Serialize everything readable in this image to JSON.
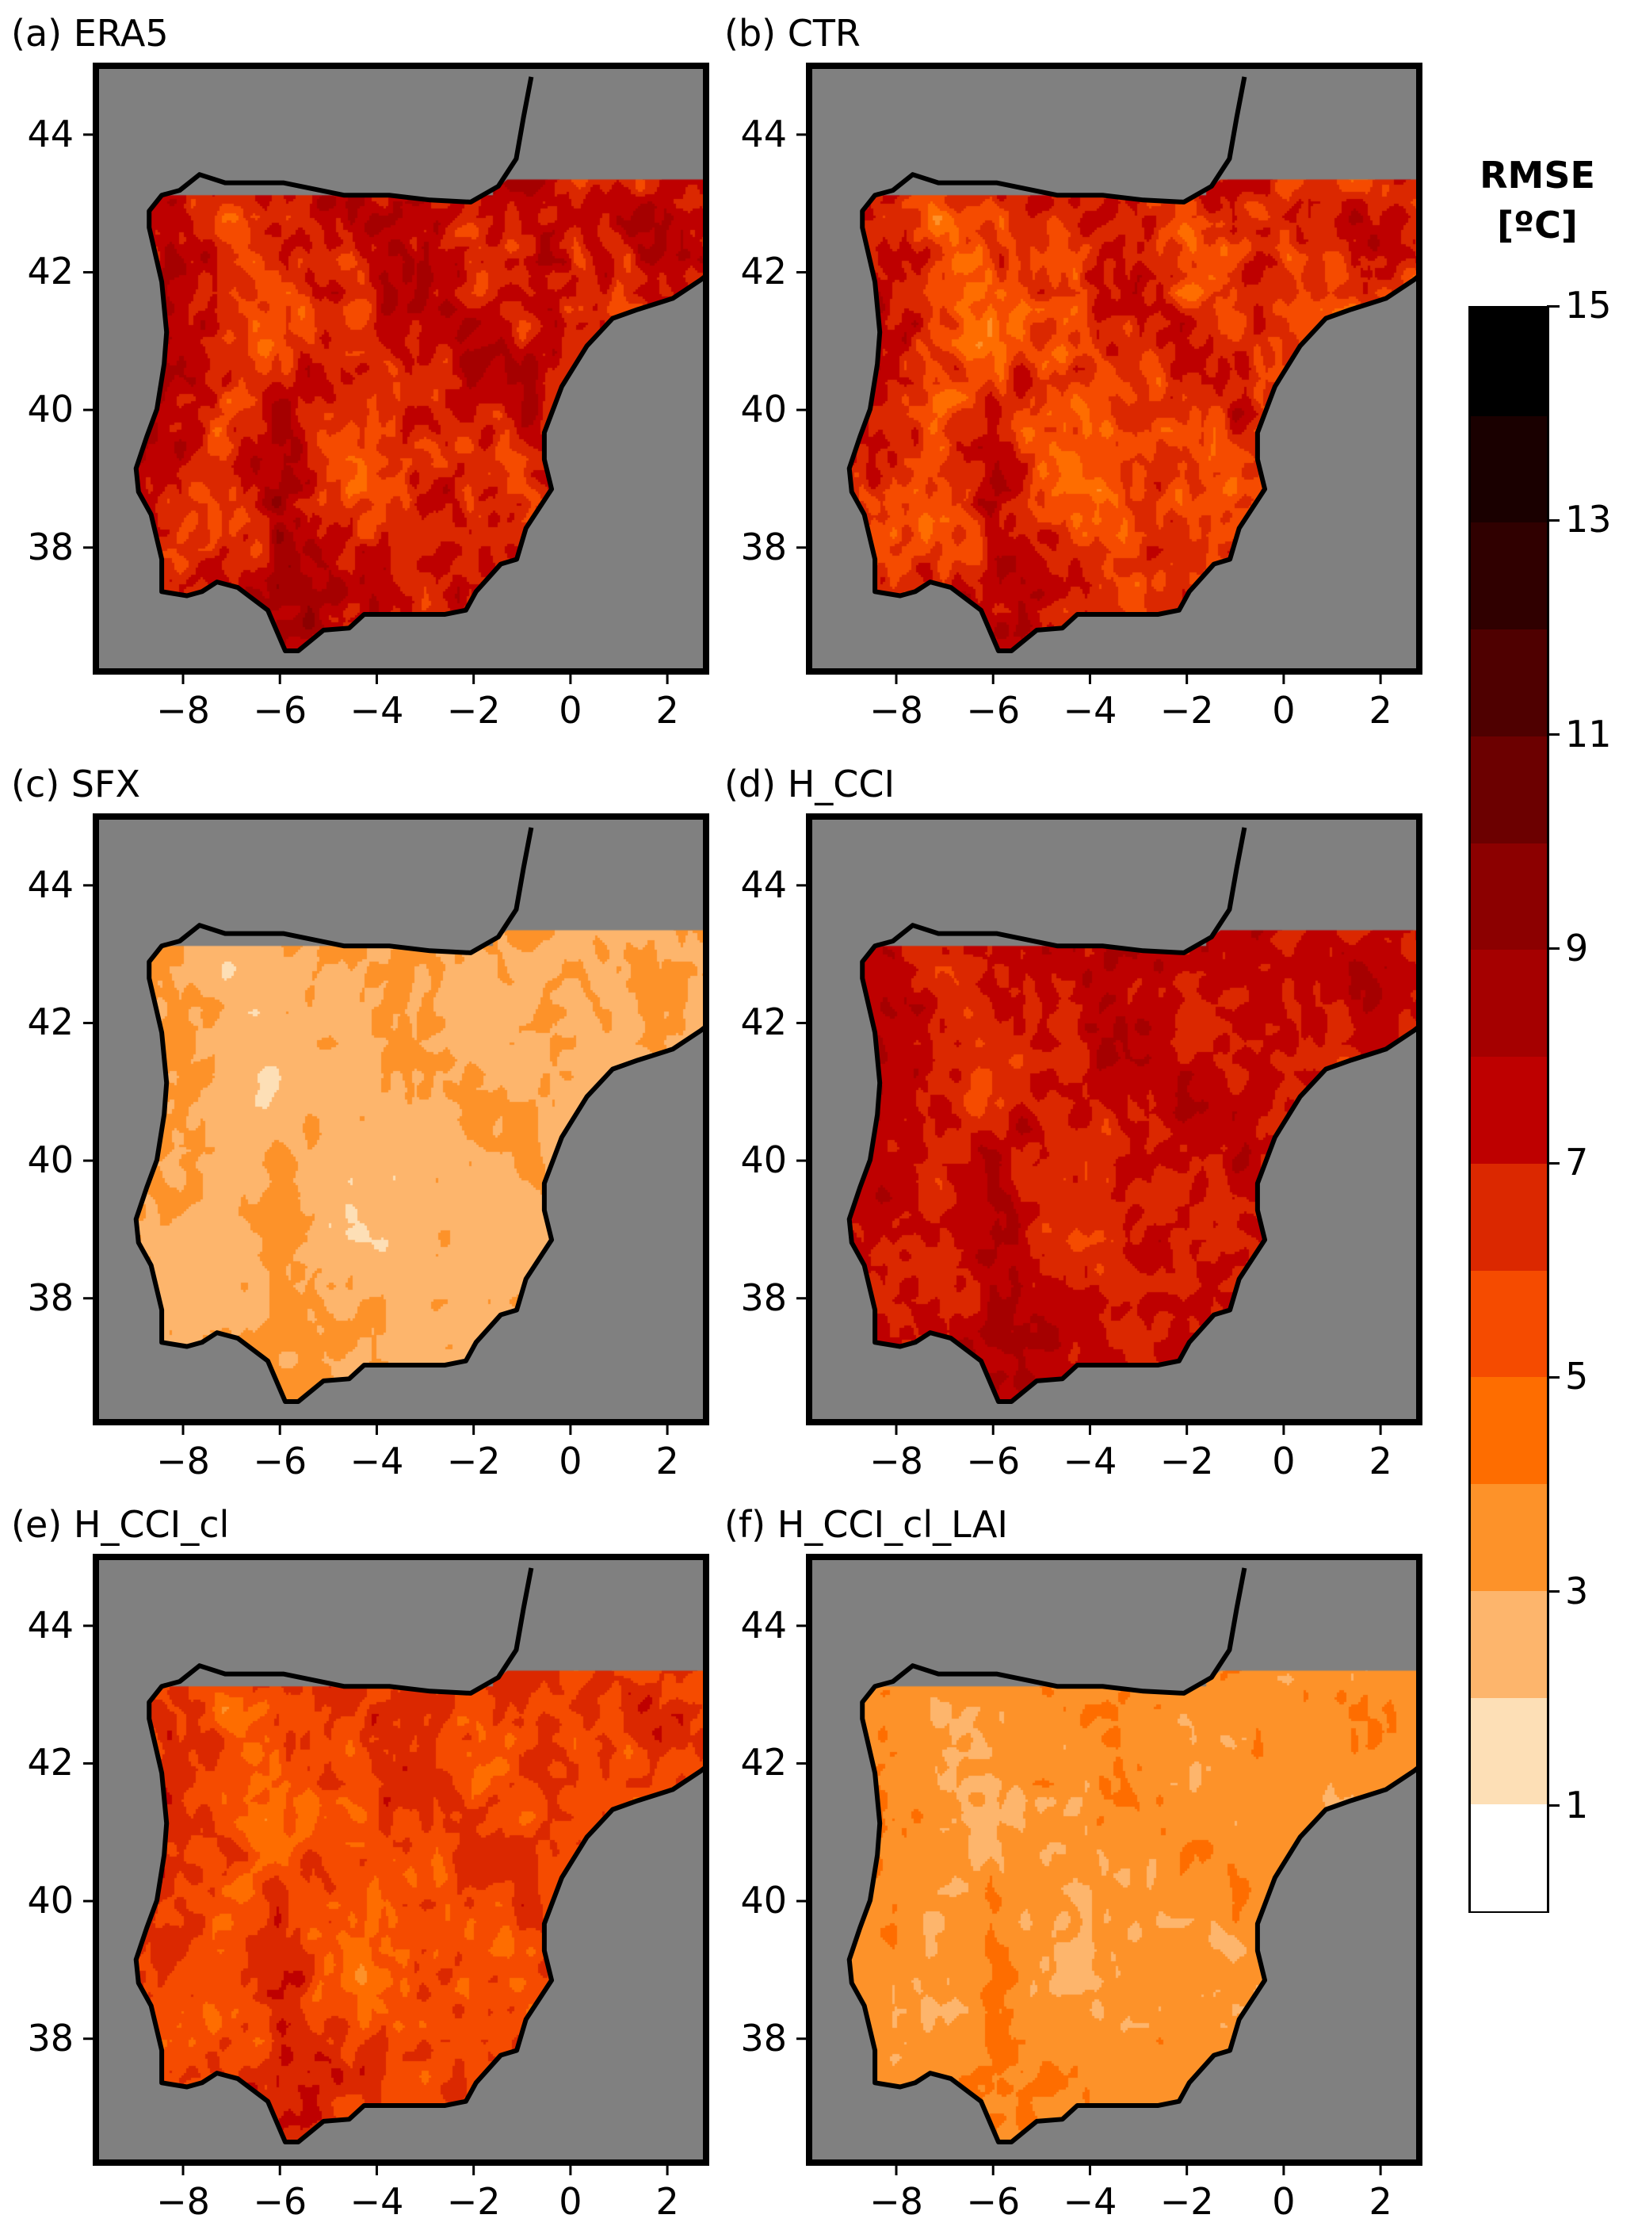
{
  "panels": [
    {
      "label": "(a) ERA5",
      "approx_mean_rmse": 7.0,
      "spread": 3.0
    },
    {
      "label": "(b) CTR",
      "approx_mean_rmse": 6.3,
      "spread": 3.0
    },
    {
      "label": "(c) SFX",
      "approx_mean_rmse": 2.8,
      "spread": 1.2
    },
    {
      "label": "(d) H_CCI",
      "approx_mean_rmse": 7.2,
      "spread": 2.0
    },
    {
      "label": "(e) H_CCI_cl",
      "approx_mean_rmse": 5.8,
      "spread": 2.2
    },
    {
      "label": "(f) H_CCI_cl_LAI",
      "approx_mean_rmse": 3.5,
      "spread": 1.3
    }
  ],
  "axes": {
    "lon_range": [
      -9.8,
      2.8
    ],
    "lat_range": [
      36.2,
      45.0
    ],
    "x_ticks": [
      {
        "value": -8,
        "label": "−8"
      },
      {
        "value": -6,
        "label": "−6"
      },
      {
        "value": -4,
        "label": "−4"
      },
      {
        "value": -2,
        "label": "−2"
      },
      {
        "value": 0,
        "label": "0"
      },
      {
        "value": 2,
        "label": "2"
      }
    ],
    "y_ticks": [
      {
        "value": 38,
        "label": "38"
      },
      {
        "value": 40,
        "label": "40"
      },
      {
        "value": 42,
        "label": "42"
      },
      {
        "value": 44,
        "label": "44"
      }
    ]
  },
  "colorbar": {
    "title_line1": "RMSE",
    "title_line2": "[ºC]",
    "range": [
      0,
      15
    ],
    "ticks": [
      {
        "value": 1,
        "label": "1"
      },
      {
        "value": 3,
        "label": "3"
      },
      {
        "value": 5,
        "label": "5"
      },
      {
        "value": 7,
        "label": "7"
      },
      {
        "value": 9,
        "label": "9"
      },
      {
        "value": 11,
        "label": "11"
      },
      {
        "value": 13,
        "label": "13"
      },
      {
        "value": 15,
        "label": "15"
      }
    ],
    "colors": [
      "#ffffff",
      "#fddfb6",
      "#fdb56c",
      "#fd9229",
      "#fe6d00",
      "#f54b00",
      "#db2800",
      "#be0000",
      "#a50000",
      "#8c0000",
      "#6c0000",
      "#4f0000",
      "#300000",
      "#1a0000",
      "#000000"
    ]
  },
  "map_colors": {
    "ocean": "#808080",
    "coast": "#000000"
  }
}
